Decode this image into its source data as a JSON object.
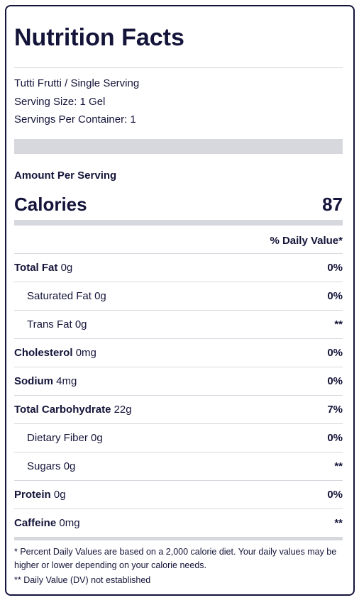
{
  "header": {
    "title": "Nutrition Facts"
  },
  "product": {
    "name": "Tutti Frutti / Single Serving",
    "serving_size": "Serving Size: 1 Gel",
    "servings_per_container": "Servings Per Container: 1"
  },
  "amount_per_serving": "Amount Per Serving",
  "calories": {
    "label": "Calories",
    "value": 87
  },
  "daily_value_header": "% Daily Value*",
  "rows": [
    {
      "name": "Total Fat",
      "amount": "0g",
      "dv": "0%",
      "sub": false
    },
    {
      "name": "Saturated Fat",
      "amount": "0g",
      "dv": "0%",
      "sub": true
    },
    {
      "name": "Trans Fat",
      "amount": "0g",
      "dv": "**",
      "sub": true
    },
    {
      "name": "Cholesterol",
      "amount": "0mg",
      "dv": "0%",
      "sub": false
    },
    {
      "name": "Sodium",
      "amount": "4mg",
      "dv": "0%",
      "sub": false
    },
    {
      "name": "Total Carbohydrate",
      "amount": "22g",
      "dv": "7%",
      "sub": false
    },
    {
      "name": "Dietary Fiber",
      "amount": "0g",
      "dv": "0%",
      "sub": true
    },
    {
      "name": "Sugars",
      "amount": "0g",
      "dv": "**",
      "sub": true
    },
    {
      "name": "Protein",
      "amount": "0g",
      "dv": "0%",
      "sub": false
    },
    {
      "name": "Caffeine",
      "amount": "0mg",
      "dv": "**",
      "sub": false
    }
  ],
  "footnotes": [
    "* Percent Daily Values are based on a 2,000 calorie diet. Your daily values may be higher or lower depending on your calorie needs.",
    "** Daily Value (DV) not established"
  ]
}
